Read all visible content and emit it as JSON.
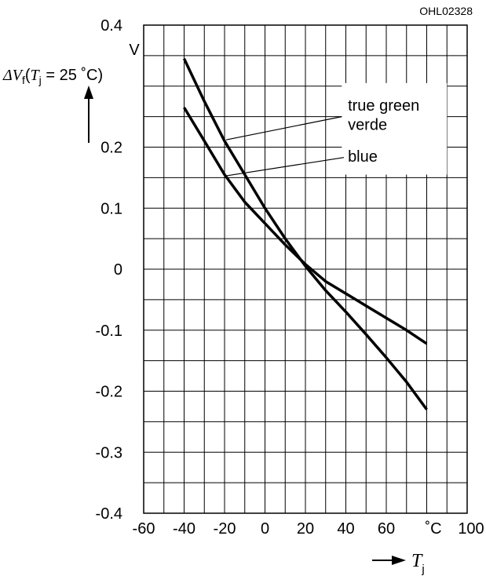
{
  "figure_code": "OHL02328",
  "chart_data": {
    "type": "line",
    "xlim": [
      -60,
      100
    ],
    "ylim": [
      -0.4,
      0.4
    ],
    "x_ticks": [
      "-60",
      "-40",
      "-20",
      "0",
      "20",
      "40",
      "60"
    ],
    "x_unit": "˚C",
    "x_last_tick": "100",
    "y_ticks": [
      "0.4",
      "0.2",
      "0.1",
      "0",
      "-0.1",
      "-0.2",
      "-0.3",
      "-0.4"
    ],
    "y_unit": "V",
    "y_axis_label": {
      "delta": "Δ",
      "var": "V",
      "var_sub": "f",
      "open": "(",
      "t": "T",
      "t_sub": "j",
      "rest": " = 25 ˚C)"
    },
    "x_axis_label": {
      "var": "T",
      "sub": "j"
    },
    "grid": true,
    "series": [
      {
        "name": "true green verde",
        "label_lines": [
          "true green",
          "verde"
        ],
        "x": [
          -40,
          -30,
          -20,
          -10,
          0,
          10,
          20,
          30,
          40,
          50,
          60,
          70,
          80
        ],
        "y": [
          0.345,
          0.275,
          0.21,
          0.155,
          0.1,
          0.05,
          0.005,
          -0.035,
          -0.07,
          -0.107,
          -0.145,
          -0.185,
          -0.23
        ]
      },
      {
        "name": "blue",
        "label_lines": [
          "blue"
        ],
        "x": [
          -40,
          -30,
          -20,
          -10,
          0,
          10,
          20,
          30,
          40,
          50,
          60,
          70,
          80
        ],
        "y": [
          0.265,
          0.21,
          0.155,
          0.11,
          0.075,
          0.04,
          0.008,
          -0.02,
          -0.04,
          -0.06,
          -0.08,
          -0.1,
          -0.122
        ]
      }
    ]
  }
}
